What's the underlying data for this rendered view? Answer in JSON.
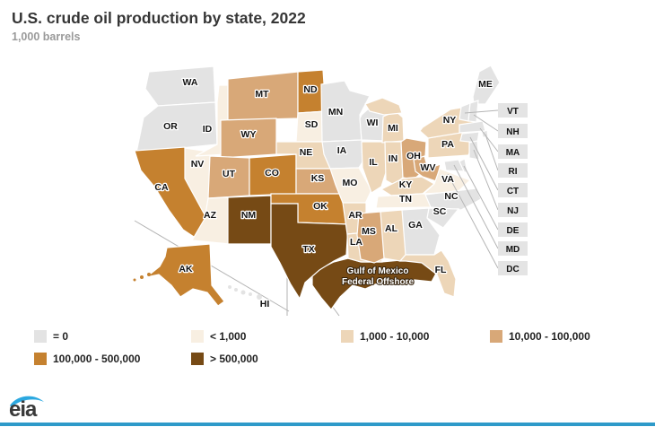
{
  "title": "U.S. crude oil production by state, 2022",
  "subtitle": "1,000 barrels",
  "legend": {
    "items": [
      {
        "label": "= 0",
        "category": "zero"
      },
      {
        "label": "< 1,000",
        "category": "lt1k"
      },
      {
        "label": "1,000 - 10,000",
        "category": "k1_10"
      },
      {
        "label": "10,000 - 100,000",
        "category": "k10_100"
      },
      {
        "label": "100,000 - 500,000",
        "category": "k100_500"
      },
      {
        "label": "> 500,000",
        "category": "gt500k"
      }
    ]
  },
  "colors": {
    "zero": "#e3e3e3",
    "lt1k": "#f8efe2",
    "k1_10": "#edd6b8",
    "k10_100": "#d8a878",
    "k100_500": "#c5812f",
    "gt500k": "#764a15",
    "box_fill": "#e4e4e4",
    "leader_line": "#b5b5b5",
    "inset_line": "#b3b3b3"
  },
  "map": {
    "states": [
      {
        "abbr": "WA",
        "category": "zero"
      },
      {
        "abbr": "OR",
        "category": "zero"
      },
      {
        "abbr": "CA",
        "category": "k100_500"
      },
      {
        "abbr": "NV",
        "category": "lt1k"
      },
      {
        "abbr": "ID",
        "category": "lt1k"
      },
      {
        "abbr": "MT",
        "category": "k10_100"
      },
      {
        "abbr": "WY",
        "category": "k10_100"
      },
      {
        "abbr": "UT",
        "category": "k10_100"
      },
      {
        "abbr": "AZ",
        "category": "lt1k"
      },
      {
        "abbr": "NM",
        "category": "gt500k"
      },
      {
        "abbr": "CO",
        "category": "k100_500"
      },
      {
        "abbr": "ND",
        "category": "k100_500"
      },
      {
        "abbr": "SD",
        "category": "lt1k"
      },
      {
        "abbr": "NE",
        "category": "k1_10"
      },
      {
        "abbr": "KS",
        "category": "k10_100"
      },
      {
        "abbr": "OK",
        "category": "k100_500"
      },
      {
        "abbr": "TX",
        "category": "gt500k"
      },
      {
        "abbr": "MN",
        "category": "zero"
      },
      {
        "abbr": "IA",
        "category": "zero"
      },
      {
        "abbr": "MO",
        "category": "lt1k"
      },
      {
        "abbr": "AR",
        "category": "k1_10"
      },
      {
        "abbr": "LA",
        "category": "k1_10"
      },
      {
        "abbr": "WI",
        "category": "zero"
      },
      {
        "abbr": "IL",
        "category": "k1_10"
      },
      {
        "abbr": "MI",
        "category": "k1_10"
      },
      {
        "abbr": "IN",
        "category": "k1_10"
      },
      {
        "abbr": "OH",
        "category": "k10_100"
      },
      {
        "abbr": "KY",
        "category": "k1_10"
      },
      {
        "abbr": "TN",
        "category": "lt1k"
      },
      {
        "abbr": "WV",
        "category": "k10_100"
      },
      {
        "abbr": "VA",
        "category": "lt1k"
      },
      {
        "abbr": "NC",
        "category": "zero"
      },
      {
        "abbr": "SC",
        "category": "zero"
      },
      {
        "abbr": "GA",
        "category": "zero"
      },
      {
        "abbr": "AL",
        "category": "k1_10"
      },
      {
        "abbr": "MS",
        "category": "k10_100"
      },
      {
        "abbr": "FL",
        "category": "k1_10"
      },
      {
        "abbr": "PA",
        "category": "k1_10"
      },
      {
        "abbr": "NY",
        "category": "k1_10"
      },
      {
        "abbr": "ME",
        "category": "zero"
      },
      {
        "abbr": "VT",
        "category": "zero",
        "no_label": true
      },
      {
        "abbr": "NH",
        "category": "zero",
        "no_label": true
      },
      {
        "abbr": "MA",
        "category": "zero",
        "no_label": true
      },
      {
        "abbr": "RI",
        "category": "zero",
        "no_label": true
      },
      {
        "abbr": "CT",
        "category": "zero",
        "no_label": true
      },
      {
        "abbr": "NJ",
        "category": "zero",
        "no_label": true
      },
      {
        "abbr": "DE",
        "category": "zero",
        "no_label": true
      },
      {
        "abbr": "MD",
        "category": "zero",
        "no_label": true
      },
      {
        "abbr": "AK",
        "category": "k100_500"
      },
      {
        "abbr": "HI",
        "category": "zero"
      }
    ],
    "offshore": {
      "label_lines": [
        "Gulf of Mexico",
        "Federal Offshore"
      ],
      "category": "gt500k"
    },
    "box_states": [
      {
        "abbr": "VT",
        "category": "zero"
      },
      {
        "abbr": "NH",
        "category": "zero"
      },
      {
        "abbr": "MA",
        "category": "zero"
      },
      {
        "abbr": "RI",
        "category": "zero"
      },
      {
        "abbr": "CT",
        "category": "zero"
      },
      {
        "abbr": "NJ",
        "category": "zero"
      },
      {
        "abbr": "DE",
        "category": "zero"
      },
      {
        "abbr": "MD",
        "category": "zero"
      },
      {
        "abbr": "DC",
        "category": "zero"
      }
    ]
  },
  "logo": {
    "text": "eia"
  },
  "chart_data": {
    "type": "choropleth",
    "title": "U.S. crude oil production by state, 2022",
    "unit": "1,000 barrels",
    "legend_bins": [
      "= 0",
      "< 1,000",
      "1,000 - 10,000",
      "10,000 - 100,000",
      "100,000 - 500,000",
      "> 500,000"
    ],
    "bins": {
      "= 0": [
        "WA",
        "OR",
        "MN",
        "IA",
        "WI",
        "NC",
        "SC",
        "GA",
        "ME",
        "HI",
        "VT",
        "NH",
        "MA",
        "RI",
        "CT",
        "NJ",
        "DE",
        "MD",
        "DC"
      ],
      "< 1,000": [
        "ID",
        "NV",
        "AZ",
        "SD",
        "MO",
        "TN",
        "VA"
      ],
      "1,000 - 10,000": [
        "NE",
        "IL",
        "IN",
        "MI",
        "KY",
        "PA",
        "NY",
        "AR",
        "LA",
        "AL",
        "FL"
      ],
      "10,000 - 100,000": [
        "MT",
        "WY",
        "UT",
        "KS",
        "OH",
        "WV",
        "MS"
      ],
      "100,000 - 500,000": [
        "ND",
        "CO",
        "OK",
        "CA",
        "AK"
      ],
      "> 500,000": [
        "TX",
        "NM",
        "Gulf of Mexico Federal Offshore"
      ]
    }
  }
}
